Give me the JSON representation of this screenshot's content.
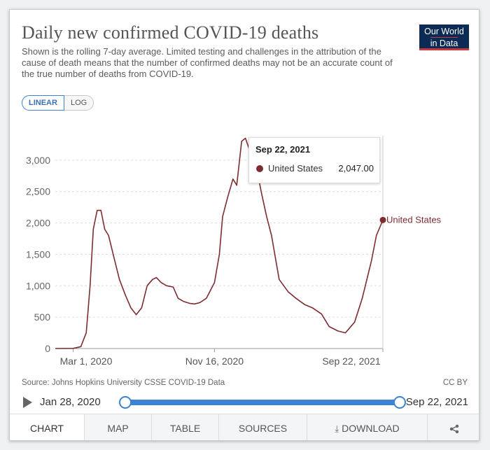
{
  "header": {
    "title": "Daily new confirmed COVID-19 deaths",
    "subtitle": "Shown is the rolling 7-day average. Limited testing and challenges in the attribution of the cause of death means that the number of confirmed deaths may not be an accurate count of the true number of deaths from COVID-19.",
    "logo_line1": "Our World",
    "logo_line2": "in Data"
  },
  "scale_toggle": {
    "linear": "LINEAR",
    "log": "LOG",
    "selected": "LINEAR"
  },
  "chart_data": {
    "type": "line",
    "title": "Daily new confirmed COVID-19 deaths",
    "xlabel": "",
    "ylabel": "",
    "ylim": [
      0,
      3500
    ],
    "yticks": [
      "0",
      "500",
      "1,000",
      "1,500",
      "2,000",
      "2,500",
      "3,000"
    ],
    "ytick_values": [
      0,
      500,
      1000,
      1500,
      2000,
      2500,
      3000
    ],
    "xticks": [
      "Mar 1, 2020",
      "Nov 16, 2020",
      "Sep 22, 2021"
    ],
    "xtick_dates": [
      "2020-03-01",
      "2020-11-16",
      "2021-09-22"
    ],
    "grid": "horizontal dashed",
    "color": "#7e2c31",
    "series": [
      {
        "name": "United States",
        "x": [
          "2020-01-28",
          "2020-03-01",
          "2020-03-15",
          "2020-03-25",
          "2020-04-01",
          "2020-04-07",
          "2020-04-14",
          "2020-04-21",
          "2020-04-28",
          "2020-05-05",
          "2020-05-15",
          "2020-05-25",
          "2020-06-05",
          "2020-06-15",
          "2020-06-25",
          "2020-07-05",
          "2020-07-15",
          "2020-07-25",
          "2020-08-01",
          "2020-08-10",
          "2020-08-20",
          "2020-09-01",
          "2020-09-10",
          "2020-09-20",
          "2020-10-01",
          "2020-10-10",
          "2020-10-20",
          "2020-11-01",
          "2020-11-16",
          "2020-11-25",
          "2020-12-01",
          "2020-12-10",
          "2020-12-20",
          "2020-12-27",
          "2021-01-05",
          "2021-01-12",
          "2021-01-18",
          "2021-01-25",
          "2021-02-01",
          "2021-02-10",
          "2021-02-20",
          "2021-03-01",
          "2021-03-15",
          "2021-04-01",
          "2021-04-15",
          "2021-05-01",
          "2021-05-15",
          "2021-06-01",
          "2021-06-15",
          "2021-07-01",
          "2021-07-15",
          "2021-08-01",
          "2021-08-15",
          "2021-09-01",
          "2021-09-10",
          "2021-09-22"
        ],
        "values": [
          0,
          2,
          30,
          250,
          1000,
          1900,
          2200,
          2200,
          1900,
          1800,
          1450,
          1100,
          850,
          650,
          540,
          650,
          1000,
          1100,
          1130,
          1050,
          1000,
          980,
          800,
          750,
          720,
          710,
          730,
          800,
          1050,
          1500,
          2100,
          2400,
          2700,
          2600,
          3300,
          3350,
          3200,
          3000,
          2900,
          2500,
          2100,
          1800,
          1100,
          900,
          800,
          700,
          650,
          550,
          350,
          280,
          250,
          420,
          800,
          1400,
          1800,
          2047
        ]
      }
    ]
  },
  "tooltip": {
    "date": "Sep 22, 2021",
    "series": "United States",
    "value": "2,047.00"
  },
  "end_label": "United States",
  "footer": {
    "source": "Source: Johns Hopkins University CSSE COVID-19 Data",
    "license": "CC BY"
  },
  "timeline": {
    "start": "Jan 28, 2020",
    "end": "Sep 22, 2021",
    "start_position": 0,
    "end_position": 1
  },
  "tabs": [
    {
      "label": "CHART",
      "active": true
    },
    {
      "label": "MAP",
      "active": false
    },
    {
      "label": "TABLE",
      "active": false
    },
    {
      "label": "SOURCES",
      "active": false
    },
    {
      "label": "DOWNLOAD",
      "active": false
    },
    {
      "label": "",
      "active": false
    }
  ]
}
